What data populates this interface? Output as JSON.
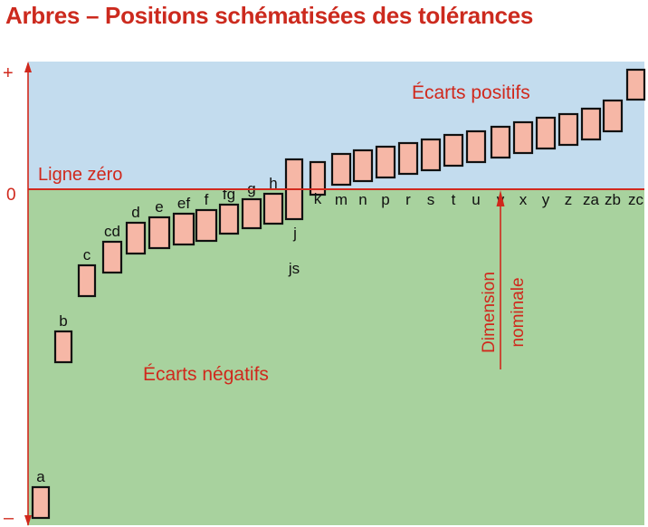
{
  "title": "Arbres – Positions schématisées des tolérances",
  "axis": {
    "plus": "+",
    "minus": "–",
    "zero_value": "0"
  },
  "zero_line_label": "Ligne zéro",
  "regions": {
    "positive_label": "Écarts positifs",
    "negative_label": "Écarts négatifs"
  },
  "nominal_label": [
    "Dimension",
    "nominale"
  ],
  "colors": {
    "positive_bg": "#c3dcee",
    "negative_bg": "#a8d29e",
    "box_fill": "#f6b7a6",
    "accent": "#d0281c",
    "zero_line": "#d22a1e",
    "text": "#111111"
  },
  "tolerance_positions": [
    {
      "label": "a",
      "label_pos": "above"
    },
    {
      "label": "b",
      "label_pos": "above"
    },
    {
      "label": "c",
      "label_pos": "above"
    },
    {
      "label": "cd",
      "label_pos": "above"
    },
    {
      "label": "d",
      "label_pos": "above"
    },
    {
      "label": "e",
      "label_pos": "above"
    },
    {
      "label": "ef",
      "label_pos": "above"
    },
    {
      "label": "f",
      "label_pos": "above"
    },
    {
      "label": "fg",
      "label_pos": "above"
    },
    {
      "label": "g",
      "label_pos": "above"
    },
    {
      "label": "h",
      "label_pos": "above"
    },
    {
      "label": "js",
      "label_pos": "below",
      "extra_label": "j"
    },
    {
      "label": "k",
      "label_pos": "below"
    },
    {
      "label": "m",
      "label_pos": "below"
    },
    {
      "label": "n",
      "label_pos": "below"
    },
    {
      "label": "p",
      "label_pos": "below"
    },
    {
      "label": "r",
      "label_pos": "below"
    },
    {
      "label": "s",
      "label_pos": "below"
    },
    {
      "label": "t",
      "label_pos": "below"
    },
    {
      "label": "u",
      "label_pos": "below"
    },
    {
      "label": "v",
      "label_pos": "below"
    },
    {
      "label": "x",
      "label_pos": "below"
    },
    {
      "label": "y",
      "label_pos": "below"
    },
    {
      "label": "z",
      "label_pos": "below"
    },
    {
      "label": "za",
      "label_pos": "below"
    },
    {
      "label": "zb",
      "label_pos": "below"
    },
    {
      "label": "zc",
      "label_pos": "below"
    }
  ]
}
